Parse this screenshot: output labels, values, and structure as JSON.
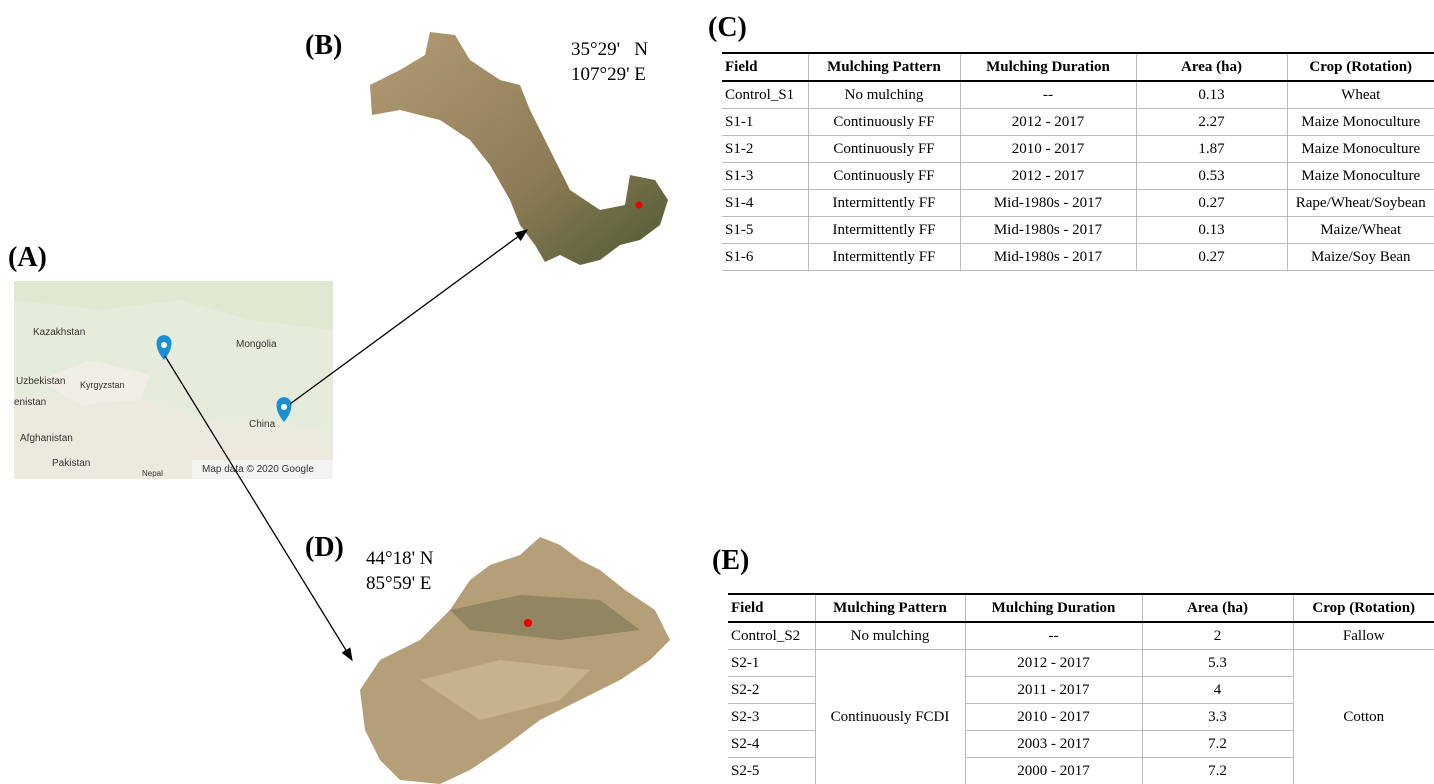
{
  "panels": {
    "a": {
      "label": "(A)",
      "map_labels": [
        "Kazakhstan",
        "Mongolia",
        "Uzbekistan",
        "Kyrgyzstan",
        "enistan",
        "Afghanistan",
        "China",
        "Pakistan",
        "Nepal"
      ],
      "attribution": "Map data © 2020 Google"
    },
    "b": {
      "label": "(B)",
      "coords": [
        "35°29'   N",
        "107°29' E"
      ]
    },
    "c": {
      "label": "(C)",
      "table": {
        "header": [
          "Field",
          "Mulching Pattern",
          "Mulching Duration",
          "Area (ha)",
          "Crop (Rotation)"
        ],
        "rows": [
          [
            "Control_S1",
            "No mulching",
            "--",
            "0.13",
            "Wheat"
          ],
          [
            "S1-1",
            "Continuously FF",
            "2012 - 2017",
            "2.27",
            "Maize Monoculture"
          ],
          [
            "S1-2",
            "Continuously FF",
            "2010 - 2017",
            "1.87",
            "Maize Monoculture"
          ],
          [
            "S1-3",
            "Continuously FF",
            "2012 - 2017",
            "0.53",
            "Maize Monoculture"
          ],
          [
            "S1-4",
            "Intermittently FF",
            "Mid-1980s - 2017",
            "0.27",
            "Rape/Wheat/Soybean"
          ],
          [
            "S1-5",
            "Intermittently FF",
            "Mid-1980s - 2017",
            "0.13",
            "Maize/Wheat"
          ],
          [
            "S1-6",
            "Intermittently FF",
            "Mid-1980s - 2017",
            "0.27",
            "Maize/Soy Bean"
          ]
        ]
      }
    },
    "d": {
      "label": "(D)",
      "coords": [
        "44°18' N",
        "85°59' E"
      ]
    },
    "e": {
      "label": "(E)",
      "table": {
        "header": [
          "Field",
          "Mulching Pattern",
          "Mulching Duration",
          "Area (ha)",
          "Crop (Rotation)"
        ],
        "control": [
          "Control_S2",
          "No mulching",
          "--",
          "2",
          "Fallow"
        ],
        "group": {
          "pattern": "Continuously FCDI",
          "crop": "Cotton",
          "rows": [
            [
              "S2-1",
              "2012 - 2017",
              "5.3"
            ],
            [
              "S2-2",
              "2011 - 2017",
              "4"
            ],
            [
              "S2-3",
              "2010 - 2017",
              "3.3"
            ],
            [
              "S2-4",
              "2003 - 2017",
              "7.2"
            ],
            [
              "S2-5",
              "2000 - 2017",
              "7.2"
            ]
          ]
        }
      }
    }
  }
}
